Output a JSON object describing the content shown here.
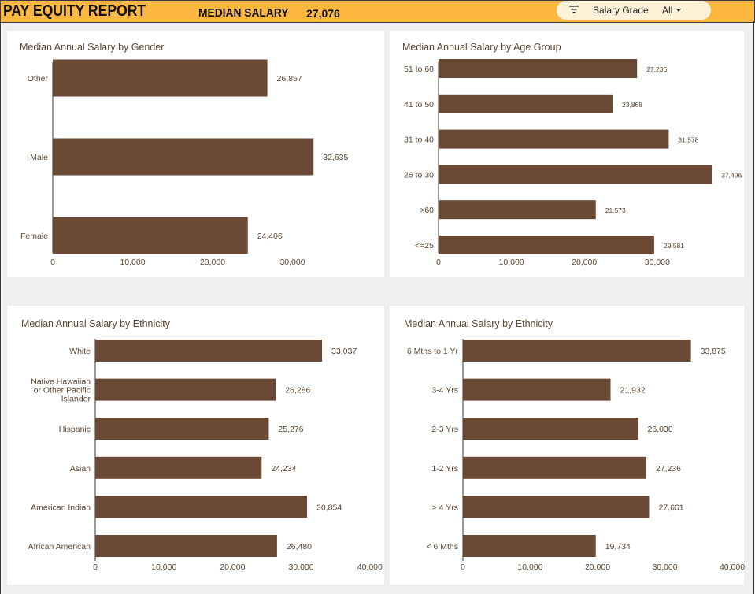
{
  "header": {
    "title": "PAY EQUITY REPORT",
    "median_label": "MEDIAN SALARY",
    "median_value": "27,076",
    "filter": {
      "label": "Salary Grade",
      "value": "All",
      "icon": "filter-icon"
    }
  },
  "colors": {
    "header_bg": "#fbb73f",
    "bar": "#6b4a35",
    "text": "#5c4634",
    "panel_bg": "#ffffff",
    "page_bg": "#efefef"
  },
  "chart_data": [
    {
      "type": "bar",
      "orientation": "horizontal",
      "title": "Median Annual Salary by Gender",
      "categories": [
        "Other",
        "Male",
        "Female"
      ],
      "values": [
        26857,
        32635,
        24406
      ],
      "value_labels": [
        "26,857",
        "32,635",
        "24,406"
      ],
      "ticks": [
        "0",
        "10,000",
        "20,000",
        "30,000"
      ],
      "xlim": [
        0,
        40000
      ]
    },
    {
      "type": "bar",
      "orientation": "horizontal",
      "title": "Median Annual Salary by Age Group",
      "categories": [
        "51 to 60",
        "41 to 50",
        "31 to 40",
        "26 to 30",
        ">60",
        "<=25"
      ],
      "values": [
        27236,
        23868,
        31578,
        37496,
        21573,
        29581
      ],
      "value_labels": [
        "27,236",
        "23,868",
        "31,578",
        "37,496",
        "21,573",
        "29,581"
      ],
      "ticks": [
        "0",
        "10,000",
        "20,000",
        "30,000"
      ],
      "xlim": [
        0,
        40000
      ]
    },
    {
      "type": "bar",
      "orientation": "horizontal",
      "title": "Median Annual Salary by Ethnicity",
      "categories": [
        [
          "White"
        ],
        [
          "Native Hawaiian",
          "or Other Pacific",
          "Islander"
        ],
        [
          "Hispanic"
        ],
        [
          "Asian"
        ],
        [
          "American Indian"
        ],
        [
          "African American"
        ]
      ],
      "values": [
        33037,
        26286,
        25276,
        24234,
        30854,
        26480
      ],
      "value_labels": [
        "33,037",
        "26,286",
        "25,276",
        "24,234",
        "30,854",
        "26,480"
      ],
      "ticks": [
        "0",
        "10,000",
        "20,000",
        "30,000",
        "40,000"
      ],
      "xlim": [
        0,
        40000
      ]
    },
    {
      "type": "bar",
      "orientation": "horizontal",
      "title": "Median Annual Salary by Ethnicity",
      "categories": [
        "6 Mths to 1 Yr",
        "3-4 Yrs",
        "2-3 Yrs",
        "1-2 Yrs",
        "> 4 Yrs",
        "< 6 Mths"
      ],
      "values": [
        33875,
        21932,
        26030,
        27236,
        27661,
        19734
      ],
      "value_labels": [
        "33,875",
        "21,932",
        "26,030",
        "27,236",
        "27,661",
        "19,734"
      ],
      "ticks": [
        "0",
        "10,000",
        "20,000",
        "30,000",
        "40,000"
      ],
      "xlim": [
        0,
        40000
      ]
    }
  ]
}
